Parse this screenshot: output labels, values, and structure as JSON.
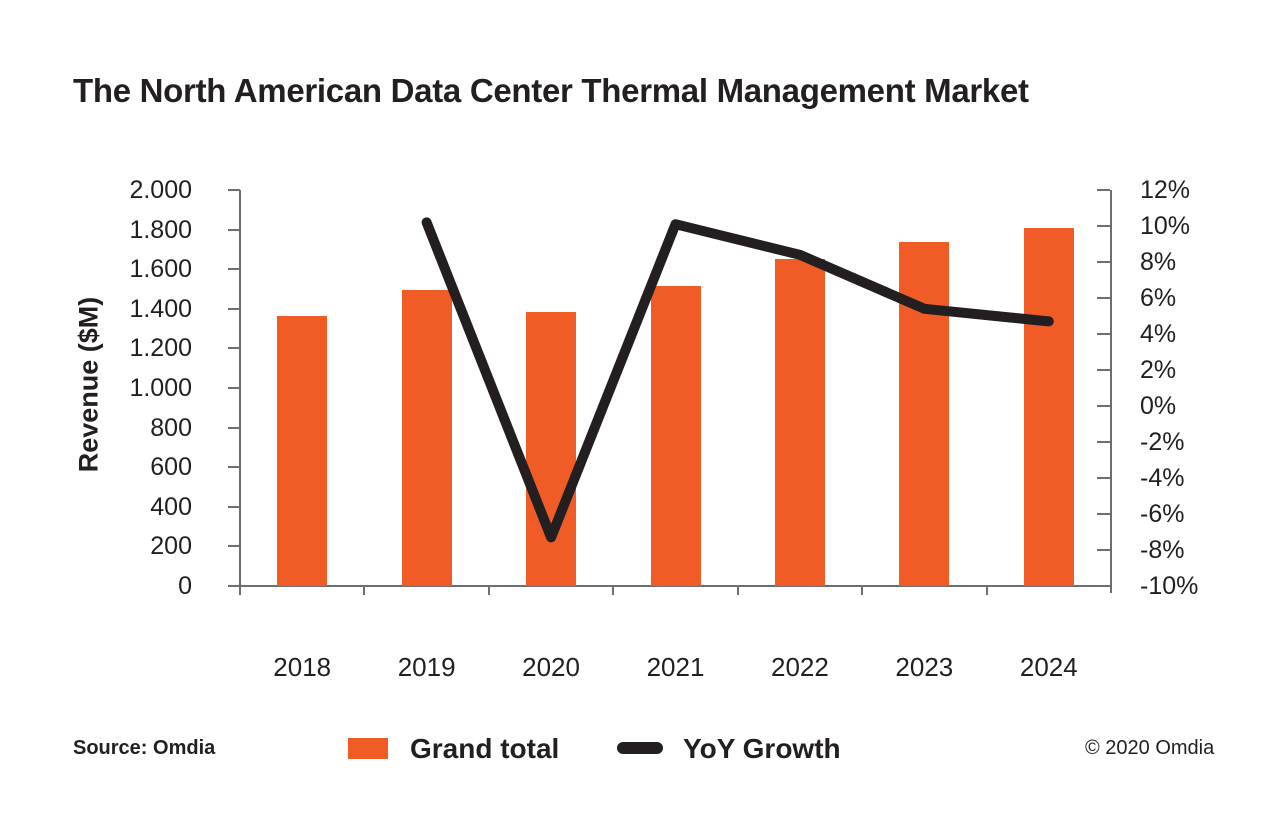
{
  "header": {
    "title": "The North American Data Center Thermal Management Market"
  },
  "footer": {
    "source": "Source: Omdia",
    "copyright": "© 2020 Omdia"
  },
  "legend": {
    "items": [
      {
        "label": "Grand total",
        "swatch": "bar-swatch",
        "color": "#F15B25"
      },
      {
        "label": "YoY Growth",
        "swatch": "line-swatch",
        "color": "#231F20"
      }
    ]
  },
  "colors": {
    "bar": "#F15B25",
    "line": "#231F20",
    "axis": "#6D6E71",
    "text": "#231F20",
    "background": "#FFFFFF"
  },
  "chart_data": {
    "type": "combo-bar-line",
    "title": "The North American Data Center Thermal Management Market",
    "categories": [
      "2018",
      "2019",
      "2020",
      "2021",
      "2022",
      "2023",
      "2024"
    ],
    "series": [
      {
        "name": "Grand total",
        "type": "bar",
        "axis": "left",
        "values": [
          1365,
          1495,
          1385,
          1515,
          1650,
          1735,
          1810
        ]
      },
      {
        "name": "YoY Growth",
        "type": "line",
        "axis": "right",
        "values": [
          null,
          10.2,
          -7.3,
          10.1,
          8.4,
          5.4,
          4.7
        ]
      }
    ],
    "left_axis": {
      "label": "Revenue ($M)",
      "min": 0,
      "max": 2000,
      "step": 200,
      "tick_labels": [
        "0",
        "200",
        "400",
        "600",
        "800",
        "1.000",
        "1.200",
        "1.400",
        "1.600",
        "1.800",
        "2.000"
      ]
    },
    "right_axis": {
      "min": -10,
      "max": 12,
      "step": 2,
      "tick_labels": [
        "-10%",
        "-8%",
        "-6%",
        "-4%",
        "-2%",
        "0%",
        "2%",
        "4%",
        "6%",
        "8%",
        "10%",
        "12%"
      ]
    },
    "grid": false,
    "legend_position": "bottom"
  }
}
